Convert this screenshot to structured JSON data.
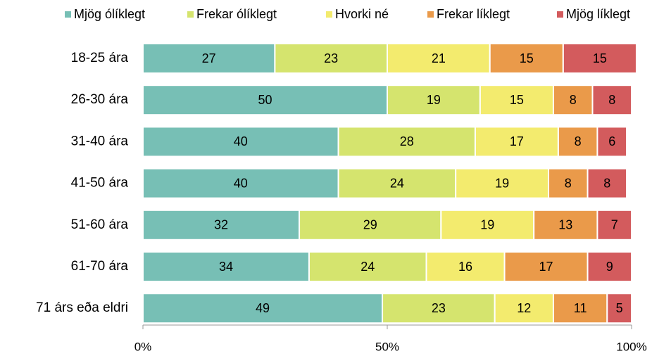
{
  "chart_data": {
    "type": "stacked_bar_horizontal",
    "categories": [
      "18-25 ára",
      "26-30 ára",
      "31-40 ára",
      "41-50 ára",
      "51-60 ára",
      "61-70 ára",
      "71 árs eða eldri"
    ],
    "series": [
      {
        "name": "Mjög ólíklegt",
        "color": "#77bfb5",
        "values": [
          27,
          50,
          40,
          40,
          32,
          34,
          49
        ]
      },
      {
        "name": "Frekar ólíklegt",
        "color": "#d5e46e",
        "values": [
          23,
          19,
          28,
          24,
          29,
          24,
          23
        ]
      },
      {
        "name": "Hvorki né",
        "color": "#f3eb6e",
        "values": [
          21,
          15,
          17,
          19,
          19,
          16,
          12
        ]
      },
      {
        "name": "Frekar líklegt",
        "color": "#ea9a4a",
        "values": [
          15,
          8,
          8,
          8,
          13,
          17,
          11
        ]
      },
      {
        "name": "Mjög líklegt",
        "color": "#d35b5d",
        "values": [
          15,
          8,
          6,
          8,
          7,
          9,
          5
        ]
      }
    ],
    "xlim": [
      0,
      100
    ],
    "xticks": [
      {
        "value": 0,
        "label": "0%"
      },
      {
        "value": 50,
        "label": "50%"
      },
      {
        "value": 100,
        "label": "100%"
      }
    ],
    "legend": "top"
  }
}
